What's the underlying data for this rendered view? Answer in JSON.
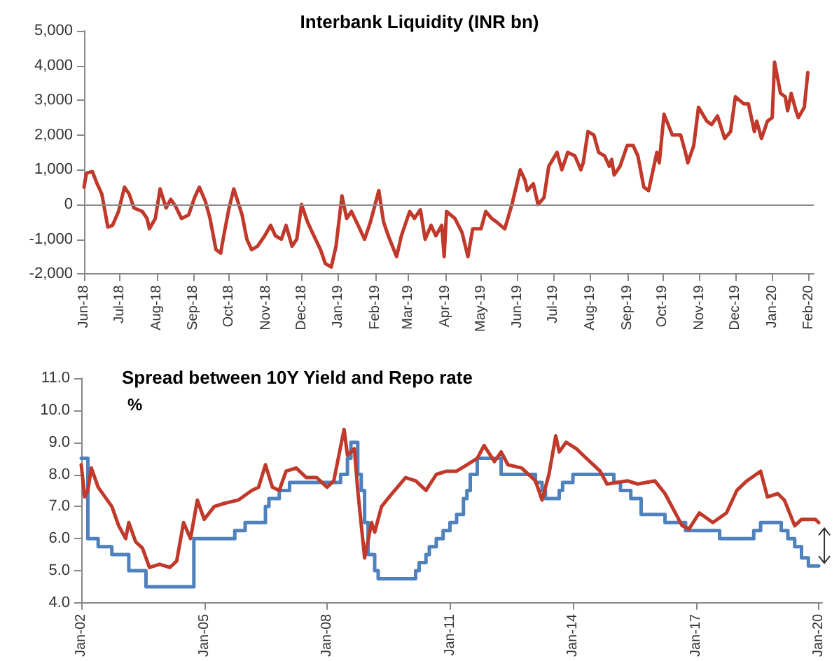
{
  "chart_data": [
    {
      "type": "line",
      "title": "Interbank Liquidity (INR bn)",
      "xlim": [
        "2018-06-01",
        "2020-02-05"
      ],
      "xticks": [
        {
          "value": "2018-06",
          "label": "Jun-18"
        },
        {
          "value": "2018-07",
          "label": "Jul-18"
        },
        {
          "value": "2018-08",
          "label": "Aug-18"
        },
        {
          "value": "2018-09",
          "label": "Sep-18"
        },
        {
          "value": "2018-10",
          "label": "Oct-18"
        },
        {
          "value": "2018-11",
          "label": "Nov-18"
        },
        {
          "value": "2018-12",
          "label": "Dec-18"
        },
        {
          "value": "2019-01",
          "label": "Jan-19"
        },
        {
          "value": "2019-02",
          "label": "Feb-19"
        },
        {
          "value": "2019-03",
          "label": "Mar-19"
        },
        {
          "value": "2019-04",
          "label": "Apr-19"
        },
        {
          "value": "2019-05",
          "label": "May-19"
        },
        {
          "value": "2019-06",
          "label": "Jun-19"
        },
        {
          "value": "2019-07",
          "label": "Jul-19"
        },
        {
          "value": "2019-08",
          "label": "Aug-19"
        },
        {
          "value": "2019-09",
          "label": "Sep-19"
        },
        {
          "value": "2019-10",
          "label": "Oct-19"
        },
        {
          "value": "2019-11",
          "label": "Nov-19"
        },
        {
          "value": "2019-12",
          "label": "Dec-19"
        },
        {
          "value": "2020-01",
          "label": "Jan-20"
        },
        {
          "value": "2020-02",
          "label": "Feb-20"
        }
      ],
      "ylim": [
        -2000,
        5000
      ],
      "yticks": [
        {
          "value": -2000,
          "label": "-2,000"
        },
        {
          "value": -1000,
          "label": "-1,000"
        },
        0,
        {
          "value": 1000,
          "label": "1,000"
        },
        {
          "value": 2000,
          "label": "2,000"
        },
        {
          "value": 3000,
          "label": "3,000"
        },
        {
          "value": 4000,
          "label": "4,000"
        },
        {
          "value": 5000,
          "label": "5,000"
        }
      ],
      "ref_lines": [
        {
          "axis": "y",
          "value": 0,
          "color": "#8c8c8c"
        }
      ],
      "series": [
        {
          "color": "#c0392b",
          "x": [
            "2018-06-01",
            "2018-06-03",
            "2018-06-08",
            "2018-06-12",
            "2018-06-16",
            "2018-06-21",
            "2018-06-25",
            "2018-06-30",
            "2018-07-05",
            "2018-07-09",
            "2018-07-13",
            "2018-07-20",
            "2018-07-24",
            "2018-07-26",
            "2018-07-31",
            "2018-08-04",
            "2018-08-09",
            "2018-08-13",
            "2018-08-17",
            "2018-08-22",
            "2018-08-28",
            "2018-09-02",
            "2018-09-06",
            "2018-09-11",
            "2018-09-15",
            "2018-09-20",
            "2018-09-24",
            "2018-09-26",
            "2018-10-01",
            "2018-10-05",
            "2018-10-12",
            "2018-10-16",
            "2018-10-20",
            "2018-10-25",
            "2018-10-31",
            "2018-11-05",
            "2018-11-09",
            "2018-11-14",
            "2018-11-18",
            "2018-11-23",
            "2018-11-27",
            "2018-12-01",
            "2018-12-06",
            "2018-12-10",
            "2018-12-17",
            "2018-12-21",
            "2018-12-26",
            "2018-12-30",
            "2019-01-04",
            "2019-01-08",
            "2019-01-12",
            "2019-01-19",
            "2019-01-23",
            "2019-01-28",
            "2019-02-04",
            "2019-02-08",
            "2019-02-12",
            "2019-02-19",
            "2019-02-23",
            "2019-03-02",
            "2019-03-06",
            "2019-03-11",
            "2019-03-15",
            "2019-03-20",
            "2019-03-24",
            "2019-03-29",
            "2019-03-31",
            "2019-04-02",
            "2019-04-09",
            "2019-04-15",
            "2019-04-20",
            "2019-04-24",
            "2019-05-01",
            "2019-05-05",
            "2019-05-10",
            "2019-05-14",
            "2019-05-21",
            "2019-05-27",
            "2019-06-03",
            "2019-06-07",
            "2019-06-09",
            "2019-06-14",
            "2019-06-18",
            "2019-06-23",
            "2019-06-27",
            "2019-07-04",
            "2019-07-08",
            "2019-07-13",
            "2019-07-19",
            "2019-07-24",
            "2019-07-26",
            "2019-07-30",
            "2019-08-04",
            "2019-08-08",
            "2019-08-13",
            "2019-08-17",
            "2019-08-19",
            "2019-08-21",
            "2019-08-26",
            "2019-09-01",
            "2019-09-06",
            "2019-09-10",
            "2019-09-15",
            "2019-09-19",
            "2019-09-26",
            "2019-09-28",
            "2019-10-02",
            "2019-10-09",
            "2019-10-16",
            "2019-10-20",
            "2019-10-22",
            "2019-10-27",
            "2019-10-31",
            "2019-11-07",
            "2019-11-11",
            "2019-11-16",
            "2019-11-22",
            "2019-11-27",
            "2019-12-01",
            "2019-12-08",
            "2019-12-12",
            "2019-12-17",
            "2019-12-19",
            "2019-12-23",
            "2019-12-28",
            "2020-01-01",
            "2020-01-03",
            "2020-01-08",
            "2020-01-12",
            "2020-01-14",
            "2020-01-17",
            "2020-01-21",
            "2020-01-23",
            "2020-01-28",
            "2020-01-31"
          ],
          "values": [
            500,
            900,
            950,
            600,
            300,
            -650,
            -600,
            -200,
            500,
            300,
            -100,
            -200,
            -400,
            -700,
            -400,
            450,
            -100,
            150,
            -50,
            -400,
            -300,
            200,
            500,
            100,
            -400,
            -1300,
            -1400,
            -1000,
            -100,
            450,
            -300,
            -1000,
            -1300,
            -1200,
            -900,
            -600,
            -900,
            -1000,
            -600,
            -1200,
            -1000,
            0,
            -500,
            -800,
            -1300,
            -1700,
            -1800,
            -1200,
            250,
            -400,
            -200,
            -700,
            -1000,
            -500,
            400,
            -500,
            -900,
            -1500,
            -900,
            -200,
            -400,
            -150,
            -1000,
            -600,
            -900,
            -600,
            -1500,
            -200,
            -400,
            -800,
            -1500,
            -700,
            -700,
            -200,
            -400,
            -500,
            -700,
            0,
            1000,
            700,
            400,
            600,
            0,
            200,
            1100,
            1500,
            1000,
            1500,
            1400,
            1000,
            1200,
            2100,
            2000,
            1500,
            1400,
            1100,
            1300,
            850,
            1100,
            1700,
            1700,
            1400,
            500,
            400,
            1500,
            1200,
            2600,
            2000,
            2000,
            1500,
            1200,
            1700,
            2800,
            2400,
            2300,
            2550,
            1900,
            2100,
            3100,
            2900,
            2900,
            2100,
            2400,
            1900,
            2400,
            2500,
            4100,
            3200,
            3100,
            2700,
            3200,
            2700,
            2500,
            2800,
            3800
          ]
        }
      ]
    },
    {
      "type": "line",
      "title": "Spread between 10Y Yield and Repo rate",
      "ylabel": "%",
      "xlim": [
        "2002-01",
        "2020-02"
      ],
      "xticks": [
        {
          "value": "2002-01",
          "label": "Jan-02"
        },
        {
          "value": "2005-01",
          "label": "Jan-05"
        },
        {
          "value": "2008-01",
          "label": "Jan-08"
        },
        {
          "value": "2011-01",
          "label": "Jan-11"
        },
        {
          "value": "2014-01",
          "label": "Jan-14"
        },
        {
          "value": "2017-01",
          "label": "Jan-17"
        },
        {
          "value": "2020-01",
          "label": "Jan-20"
        }
      ],
      "ylim": [
        4,
        11
      ],
      "yticks": [
        {
          "value": 4,
          "label": "4.0"
        },
        {
          "value": 5,
          "label": "5.0"
        },
        {
          "value": 6,
          "label": "6.0"
        },
        {
          "value": 7,
          "label": "7.0"
        },
        {
          "value": 8,
          "label": "8.0"
        },
        {
          "value": 9,
          "label": "9.0"
        },
        {
          "value": 10,
          "label": "10.0"
        },
        {
          "value": 11,
          "label": "11.0"
        }
      ],
      "series": [
        {
          "type": "step",
          "color": "#4f81bd",
          "x": [
            "2002-01",
            "2002-03",
            "2002-06",
            "2002-10",
            "2003-03",
            "2003-08",
            "2004-10",
            "2005-10",
            "2006-01",
            "2006-07",
            "2006-08",
            "2006-11",
            "2007-02",
            "2008-05",
            "2008-07",
            "2008-08",
            "2008-10",
            "2008-11",
            "2008-12",
            "2009-01",
            "2009-03",
            "2009-04",
            "2010-03",
            "2010-04",
            "2010-06",
            "2010-07",
            "2010-09",
            "2010-11",
            "2011-01",
            "2011-03",
            "2011-05",
            "2011-06",
            "2011-07",
            "2011-09",
            "2012-04",
            "2013-02",
            "2013-04",
            "2013-05",
            "2013-09",
            "2013-10",
            "2014-01",
            "2015-01",
            "2015-03",
            "2015-06",
            "2015-09",
            "2016-04",
            "2016-10",
            "2017-08",
            "2018-06",
            "2018-08",
            "2019-02",
            "2019-04",
            "2019-06",
            "2019-08",
            "2019-10",
            "2020-01"
          ],
          "values": [
            8.5,
            6.0,
            5.75,
            5.5,
            5.0,
            4.5,
            6.0,
            6.25,
            6.5,
            7.0,
            7.25,
            7.5,
            7.75,
            8.0,
            8.5,
            9.0,
            8.0,
            7.5,
            6.5,
            5.5,
            5.0,
            4.75,
            5.0,
            5.25,
            5.5,
            5.75,
            6.0,
            6.25,
            6.5,
            6.75,
            7.25,
            7.5,
            8.0,
            8.5,
            8.0,
            7.75,
            7.5,
            7.25,
            7.5,
            7.75,
            8.0,
            7.75,
            7.5,
            7.25,
            6.75,
            6.5,
            6.25,
            6.0,
            6.25,
            6.5,
            6.25,
            6.0,
            5.75,
            5.4,
            5.15,
            5.15
          ]
        },
        {
          "color": "#c0392b",
          "x": [
            "2002-01",
            "2002-02",
            "2002-03",
            "2002-04",
            "2002-06",
            "2002-08",
            "2002-10",
            "2002-12",
            "2003-02",
            "2003-03",
            "2003-05",
            "2003-07",
            "2003-09",
            "2003-12",
            "2004-03",
            "2004-05",
            "2004-07",
            "2004-09",
            "2004-11",
            "2005-01",
            "2005-04",
            "2005-07",
            "2005-11",
            "2006-03",
            "2006-05",
            "2006-07",
            "2006-09",
            "2006-11",
            "2007-01",
            "2007-04",
            "2007-07",
            "2007-10",
            "2008-01",
            "2008-03",
            "2008-06",
            "2008-07",
            "2008-09",
            "2008-10",
            "2008-12",
            "2009-02",
            "2009-03",
            "2009-05",
            "2009-08",
            "2009-12",
            "2010-03",
            "2010-06",
            "2010-09",
            "2010-12",
            "2011-03",
            "2011-06",
            "2011-09",
            "2011-11",
            "2012-02",
            "2012-04",
            "2012-06",
            "2012-10",
            "2013-02",
            "2013-04",
            "2013-06",
            "2013-08",
            "2013-09",
            "2013-11",
            "2014-02",
            "2014-04",
            "2014-09",
            "2014-11",
            "2015-05",
            "2015-08",
            "2016-01",
            "2016-04",
            "2016-09",
            "2016-11",
            "2017-02",
            "2017-06",
            "2017-10",
            "2018-01",
            "2018-04",
            "2018-08",
            "2018-10",
            "2019-01",
            "2019-03",
            "2019-06",
            "2019-08",
            "2019-12",
            "2020-01"
          ],
          "values": [
            8.3,
            7.3,
            7.5,
            8.2,
            7.6,
            7.3,
            7.0,
            6.4,
            6.0,
            6.5,
            5.9,
            5.7,
            5.1,
            5.2,
            5.1,
            5.3,
            6.5,
            6.0,
            7.2,
            6.6,
            7.0,
            7.1,
            7.2,
            7.5,
            7.6,
            8.3,
            7.6,
            7.5,
            8.1,
            8.2,
            7.9,
            7.9,
            7.6,
            7.8,
            9.4,
            8.6,
            8.8,
            7.5,
            5.4,
            6.5,
            6.2,
            7.0,
            7.4,
            7.9,
            7.8,
            7.5,
            8.0,
            8.1,
            8.1,
            8.3,
            8.5,
            8.9,
            8.4,
            8.7,
            8.3,
            8.2,
            7.8,
            7.2,
            8.0,
            9.2,
            8.7,
            9.0,
            8.8,
            8.6,
            8.1,
            7.7,
            7.8,
            7.7,
            7.8,
            7.4,
            6.4,
            6.3,
            6.8,
            6.5,
            6.8,
            7.5,
            7.8,
            8.1,
            7.3,
            7.4,
            7.2,
            6.4,
            6.6,
            6.6,
            6.5
          ]
        }
      ]
    }
  ]
}
